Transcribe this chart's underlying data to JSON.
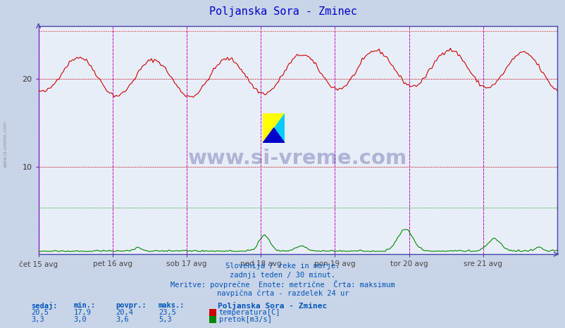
{
  "title": "Poljanska Sora - Zminec",
  "title_color": "#0000cc",
  "bg_color": "#c8d4e8",
  "plot_bg_color": "#e8eef8",
  "fig_size": [
    8.03,
    4.66
  ],
  "dpi": 100,
  "ylim": [
    0,
    26
  ],
  "temp_color": "#cc0000",
  "flow_color": "#008800",
  "grid_color": "#b8b8c8",
  "vline_color": "#cc00cc",
  "hline_red_dotted": "#dd0000",
  "hline_green_dotted": "#008800",
  "x_labels": [
    "čet 15 avg",
    "pet 16 avg",
    "sob 17 avg",
    "ned 18 avg",
    "pon 19 avg",
    "tor 20 avg",
    "sre 21 avg"
  ],
  "n_points": 336,
  "subtitle_lines": [
    "Slovenija / reke in morje.",
    "zadnji teden / 30 minut.",
    "Meritve: povprečne  Enote: metrične  Črta: maksimum",
    "navpična črta - razdelek 24 ur"
  ],
  "subtitle_color": "#0055bb",
  "table_headers": [
    "sedaj:",
    "min.:",
    "povpr.:",
    "maks.:"
  ],
  "table_color": "#0055bb",
  "station_name": "Poljanska Sora - Zminec",
  "temp_stats": [
    "20,5",
    "17,9",
    "20,4",
    "23,5"
  ],
  "flow_stats": [
    "3,3",
    "3,0",
    "3,6",
    "5,3"
  ],
  "temp_label": "temperatura[C]",
  "flow_label": "pretok[m3/s]",
  "watermark": "www.si-vreme.com",
  "watermark_color": "#1a237e",
  "temp_max_line": 23.5,
  "flow_max_line": 5.3,
  "temp_hlines": [
    25.5,
    20.0,
    10.0
  ],
  "spine_color": "#4444aa"
}
